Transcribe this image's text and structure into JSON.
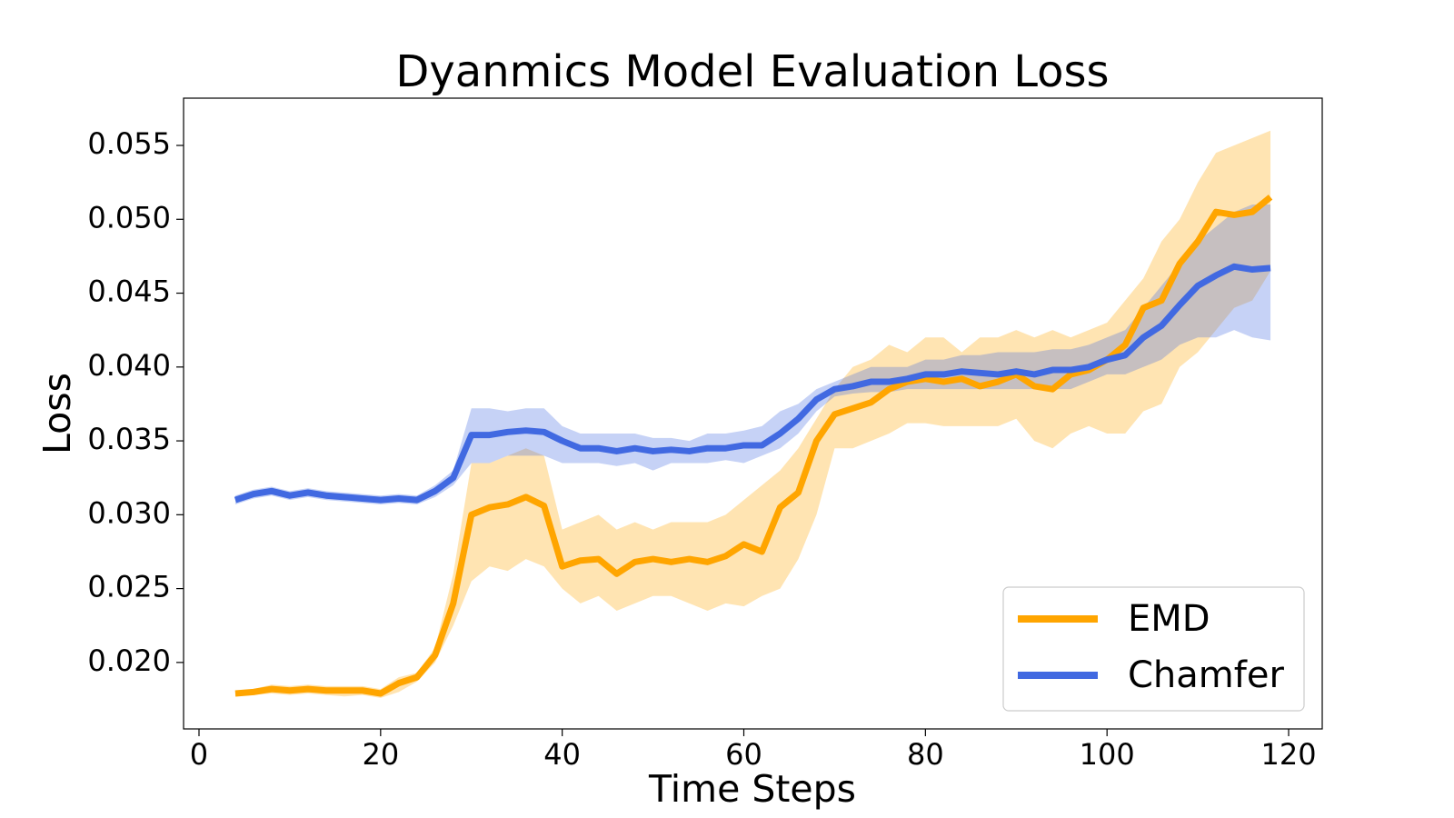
{
  "chart_data": {
    "type": "line",
    "title": "Dyanmics Model Evaluation Loss",
    "x_label": "Time Steps",
    "y_label": "Loss",
    "x": [
      4,
      6,
      8,
      10,
      12,
      14,
      16,
      18,
      20,
      22,
      24,
      26,
      28,
      30,
      32,
      34,
      36,
      38,
      40,
      42,
      44,
      46,
      48,
      50,
      52,
      54,
      56,
      58,
      60,
      62,
      64,
      66,
      68,
      70,
      72,
      74,
      76,
      78,
      80,
      82,
      84,
      86,
      88,
      90,
      92,
      94,
      96,
      98,
      100,
      102,
      104,
      106,
      108,
      110,
      112,
      114,
      116,
      118
    ],
    "series": [
      {
        "name": "EMD",
        "color": "#ffa500",
        "values": [
          0.0179,
          0.018,
          0.0182,
          0.0181,
          0.0182,
          0.0181,
          0.0181,
          0.0181,
          0.0179,
          0.0186,
          0.019,
          0.0205,
          0.024,
          0.03,
          0.0305,
          0.0307,
          0.0312,
          0.0306,
          0.0265,
          0.0269,
          0.027,
          0.026,
          0.0268,
          0.027,
          0.0268,
          0.027,
          0.0268,
          0.0272,
          0.028,
          0.0275,
          0.0305,
          0.0315,
          0.035,
          0.0368,
          0.0372,
          0.0376,
          0.0385,
          0.039,
          0.0392,
          0.039,
          0.0392,
          0.0387,
          0.039,
          0.0395,
          0.0387,
          0.0385,
          0.0395,
          0.0398,
          0.0405,
          0.0415,
          0.044,
          0.0445,
          0.047,
          0.0485,
          0.0505,
          0.0503,
          0.0505,
          0.0515
        ],
        "lower": [
          0.0177,
          0.0178,
          0.0179,
          0.0178,
          0.0179,
          0.0178,
          0.0177,
          0.0178,
          0.0176,
          0.018,
          0.0187,
          0.02,
          0.0225,
          0.0255,
          0.0265,
          0.0262,
          0.027,
          0.0265,
          0.025,
          0.024,
          0.0245,
          0.0235,
          0.024,
          0.0245,
          0.0245,
          0.024,
          0.0235,
          0.024,
          0.0238,
          0.0245,
          0.025,
          0.027,
          0.03,
          0.0345,
          0.0345,
          0.035,
          0.0355,
          0.0362,
          0.0362,
          0.036,
          0.036,
          0.036,
          0.036,
          0.0365,
          0.035,
          0.0345,
          0.0355,
          0.036,
          0.0355,
          0.0355,
          0.037,
          0.0375,
          0.04,
          0.041,
          0.0425,
          0.044,
          0.0445,
          0.0465
        ],
        "upper": [
          0.0181,
          0.0182,
          0.0185,
          0.0184,
          0.0185,
          0.0184,
          0.0184,
          0.0184,
          0.0182,
          0.019,
          0.0193,
          0.021,
          0.026,
          0.0335,
          0.0335,
          0.034,
          0.0345,
          0.034,
          0.029,
          0.0295,
          0.03,
          0.029,
          0.0295,
          0.029,
          0.0295,
          0.0295,
          0.0295,
          0.03,
          0.031,
          0.032,
          0.033,
          0.0345,
          0.0365,
          0.0385,
          0.04,
          0.0405,
          0.0415,
          0.041,
          0.042,
          0.042,
          0.041,
          0.042,
          0.042,
          0.0425,
          0.042,
          0.0425,
          0.042,
          0.0425,
          0.043,
          0.0445,
          0.046,
          0.0485,
          0.05,
          0.0525,
          0.0545,
          0.055,
          0.0555,
          0.056
        ]
      },
      {
        "name": "Chamfer",
        "color": "#4169e1",
        "values": [
          0.031,
          0.0314,
          0.0316,
          0.0313,
          0.0315,
          0.0313,
          0.0312,
          0.0311,
          0.031,
          0.0311,
          0.031,
          0.0316,
          0.0325,
          0.0354,
          0.0354,
          0.0356,
          0.0357,
          0.0356,
          0.035,
          0.0345,
          0.0345,
          0.0343,
          0.0345,
          0.0343,
          0.0344,
          0.0343,
          0.0345,
          0.0345,
          0.0347,
          0.0347,
          0.0355,
          0.0365,
          0.0378,
          0.0385,
          0.0387,
          0.039,
          0.039,
          0.0392,
          0.0395,
          0.0395,
          0.0397,
          0.0396,
          0.0395,
          0.0397,
          0.0395,
          0.0398,
          0.0398,
          0.04,
          0.0405,
          0.0408,
          0.042,
          0.0428,
          0.0442,
          0.0455,
          0.0462,
          0.0468,
          0.0466,
          0.0467
        ],
        "lower": [
          0.0307,
          0.0311,
          0.0313,
          0.031,
          0.0312,
          0.031,
          0.0309,
          0.0308,
          0.0307,
          0.0308,
          0.0307,
          0.0312,
          0.032,
          0.0335,
          0.0335,
          0.034,
          0.034,
          0.034,
          0.0335,
          0.0335,
          0.0335,
          0.0333,
          0.0335,
          0.033,
          0.0335,
          0.0335,
          0.0335,
          0.0337,
          0.0335,
          0.034,
          0.0345,
          0.0355,
          0.037,
          0.038,
          0.0382,
          0.0383,
          0.0383,
          0.0385,
          0.0385,
          0.0385,
          0.0385,
          0.0385,
          0.0385,
          0.0385,
          0.0385,
          0.0385,
          0.0385,
          0.039,
          0.0395,
          0.0395,
          0.04,
          0.0405,
          0.0415,
          0.042,
          0.042,
          0.0425,
          0.042,
          0.0418
        ],
        "upper": [
          0.0313,
          0.0317,
          0.0319,
          0.0316,
          0.0318,
          0.0316,
          0.0315,
          0.0314,
          0.0313,
          0.0314,
          0.0313,
          0.032,
          0.033,
          0.0372,
          0.0372,
          0.037,
          0.0372,
          0.0372,
          0.036,
          0.0355,
          0.0355,
          0.0355,
          0.0355,
          0.0352,
          0.0352,
          0.035,
          0.0355,
          0.0355,
          0.0357,
          0.036,
          0.037,
          0.0375,
          0.0385,
          0.039,
          0.0395,
          0.04,
          0.04,
          0.04,
          0.0405,
          0.0405,
          0.0408,
          0.0408,
          0.041,
          0.041,
          0.041,
          0.0412,
          0.0412,
          0.0415,
          0.042,
          0.0425,
          0.044,
          0.0455,
          0.047,
          0.0485,
          0.0495,
          0.0505,
          0.051,
          0.051
        ]
      }
    ],
    "xlim": [
      -1.7,
      123.7
    ],
    "xticks": [
      0,
      20,
      40,
      60,
      80,
      100,
      120
    ],
    "ylim": [
      0.0155,
      0.0582
    ],
    "yticks": [
      {
        "value": 0.02,
        "label": "0.020"
      },
      0.025,
      {
        "value": 0.03,
        "label": "0.030"
      },
      0.035,
      {
        "value": 0.04,
        "label": "0.040"
      },
      0.045,
      {
        "value": 0.05,
        "label": "0.050"
      },
      0.055
    ],
    "band_opacity": 0.3,
    "legend": "lower right"
  }
}
